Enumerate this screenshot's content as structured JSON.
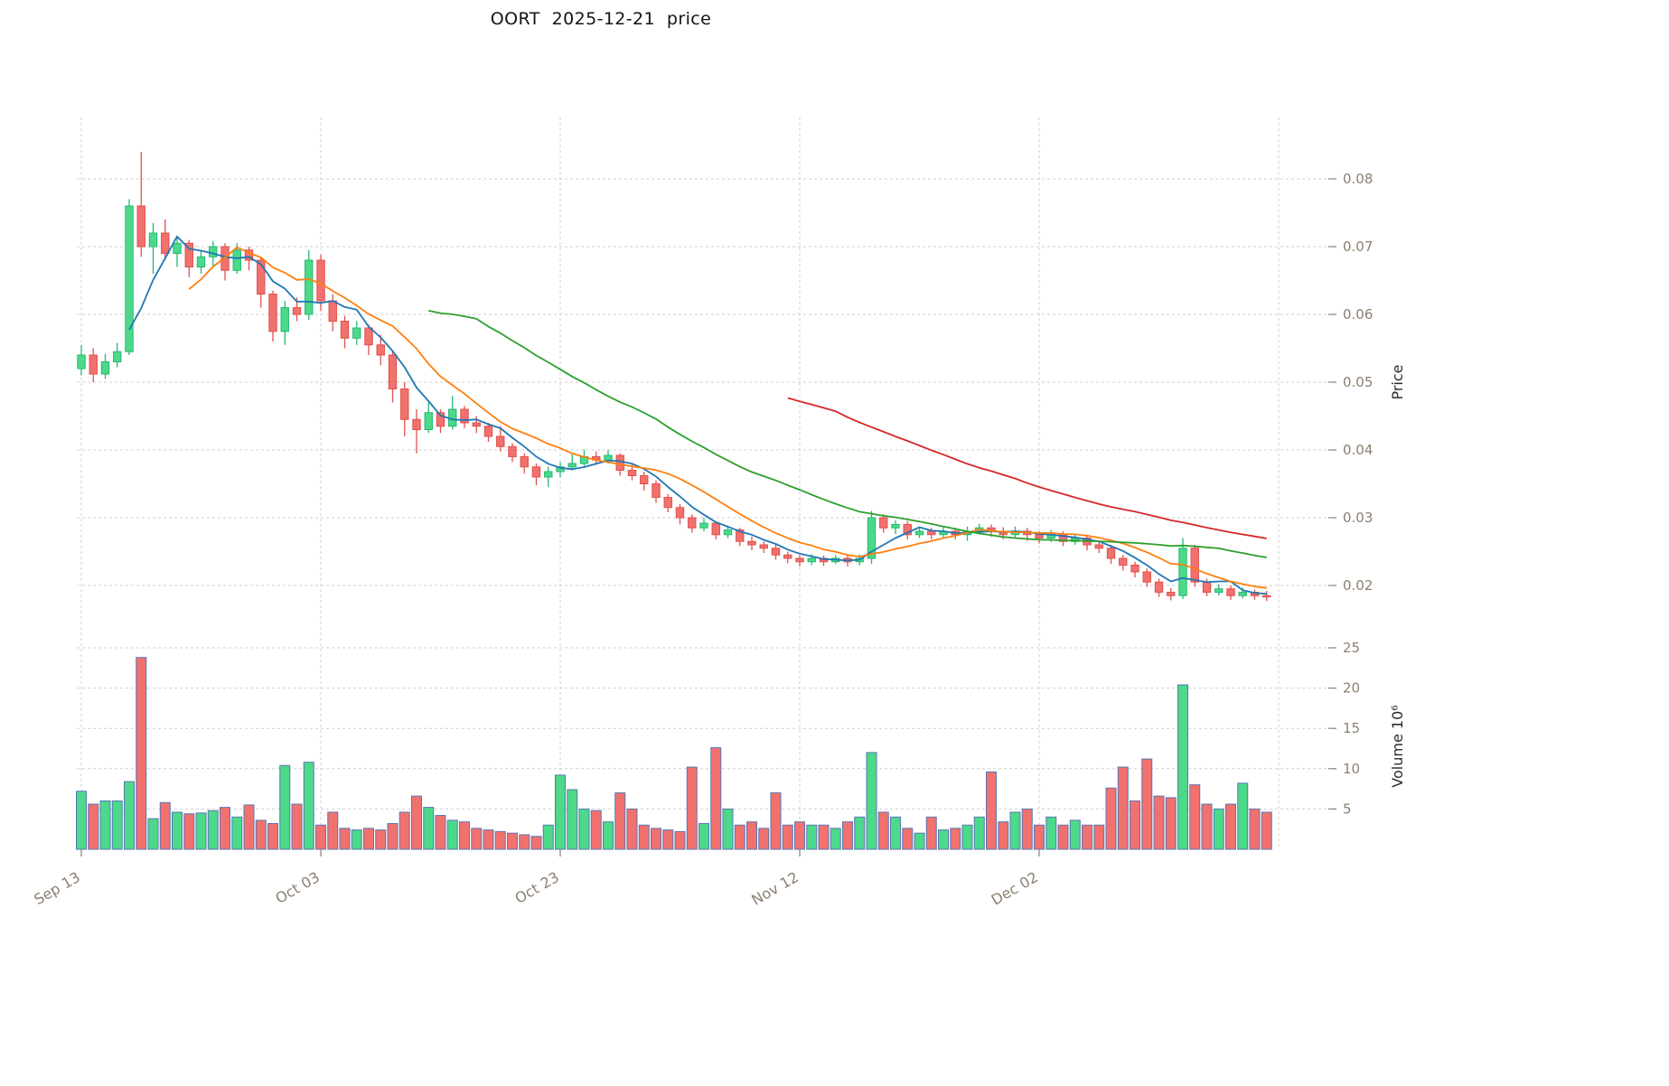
{
  "chart_data": {
    "type": "candlestick",
    "title": "OORT  2025-12-21  price",
    "ylabel": "Price",
    "y2label": "Volume  10⁶",
    "x_axis": {
      "ticks": [
        {
          "label": "Sep 13",
          "index": 0
        },
        {
          "label": "Oct 03",
          "index": 20
        },
        {
          "label": "Oct 23",
          "index": 40
        },
        {
          "label": "Nov 12",
          "index": 60
        },
        {
          "label": "Dec 02",
          "index": 80
        }
      ],
      "extra_gridline_index": 100,
      "n_candles": 100
    },
    "price_axis": {
      "side": "right",
      "ticks": [
        {
          "label": "0.08",
          "value": 0.08
        },
        {
          "label": "0.07",
          "value": 0.07
        },
        {
          "label": "0.06",
          "value": 0.06
        },
        {
          "label": "0.05",
          "value": 0.05
        },
        {
          "label": "0.04",
          "value": 0.04
        },
        {
          "label": "0.03",
          "value": 0.03
        },
        {
          "label": "0.02",
          "value": 0.02
        }
      ],
      "range": [
        0.0165,
        0.089
      ]
    },
    "volume_axis": {
      "side": "right",
      "unit": "10^6",
      "ticks": [
        {
          "label": "25",
          "value": 25
        },
        {
          "label": "20",
          "value": 20
        },
        {
          "label": "15",
          "value": 15
        },
        {
          "label": "10",
          "value": 10
        },
        {
          "label": "5",
          "value": 5
        }
      ],
      "range": [
        0,
        26
      ]
    },
    "moving_averages": [
      {
        "name": "SMA5",
        "window": 5,
        "color": "#1f77b4"
      },
      {
        "name": "SMA10",
        "window": 10,
        "color": "#ff7f0e"
      },
      {
        "name": "SMA30",
        "window": 30,
        "color": "#2ca02c"
      },
      {
        "name": "SMA60",
        "window": 60,
        "color": "#d62728"
      }
    ],
    "colors": {
      "up": "#4cd98a",
      "up_edge": "#26b871",
      "down": "#f0716e",
      "down_edge": "#e2504c",
      "volume_edge": "#5b76b3",
      "grid": "#cfcfcf",
      "tick_text": "#8b8070",
      "axis_title": "#2b2b2b",
      "title": "#141414"
    },
    "candles": {
      "open": [
        0.052,
        0.054,
        0.0512,
        0.053,
        0.0545,
        0.076,
        0.07,
        0.072,
        0.069,
        0.0705,
        0.067,
        0.0685,
        0.07,
        0.0665,
        0.0695,
        0.068,
        0.063,
        0.0575,
        0.061,
        0.06,
        0.068,
        0.062,
        0.059,
        0.0565,
        0.058,
        0.0555,
        0.054,
        0.049,
        0.0445,
        0.043,
        0.0455,
        0.0435,
        0.046,
        0.044,
        0.0435,
        0.042,
        0.0405,
        0.039,
        0.0375,
        0.036,
        0.0368,
        0.0375,
        0.038,
        0.039,
        0.0385,
        0.0392,
        0.037,
        0.0362,
        0.035,
        0.033,
        0.0315,
        0.03,
        0.0285,
        0.0292,
        0.0275,
        0.0282,
        0.0265,
        0.026,
        0.0255,
        0.0245,
        0.024,
        0.0235,
        0.024,
        0.0235,
        0.024,
        0.0235,
        0.024,
        0.03,
        0.0285,
        0.029,
        0.0275,
        0.028,
        0.0275,
        0.028,
        0.0275,
        0.028,
        0.0285,
        0.028,
        0.0275,
        0.028,
        0.0275,
        0.027,
        0.0275,
        0.0265,
        0.027,
        0.026,
        0.0255,
        0.024,
        0.023,
        0.022,
        0.0205,
        0.019,
        0.0185,
        0.0255,
        0.0205,
        0.019,
        0.0195,
        0.0185,
        0.019,
        0.0185
      ],
      "high": [
        0.0555,
        0.055,
        0.0542,
        0.0558,
        0.077,
        0.084,
        0.0735,
        0.074,
        0.0715,
        0.071,
        0.0695,
        0.0708,
        0.0705,
        0.0705,
        0.07,
        0.0685,
        0.0635,
        0.062,
        0.0625,
        0.0695,
        0.0688,
        0.063,
        0.0598,
        0.059,
        0.0585,
        0.057,
        0.0545,
        0.05,
        0.046,
        0.047,
        0.046,
        0.048,
        0.0465,
        0.045,
        0.044,
        0.0435,
        0.041,
        0.0395,
        0.038,
        0.0375,
        0.0382,
        0.0395,
        0.04,
        0.0398,
        0.04,
        0.0395,
        0.0378,
        0.0368,
        0.0355,
        0.0335,
        0.032,
        0.0305,
        0.03,
        0.0295,
        0.0288,
        0.0285,
        0.0272,
        0.0265,
        0.026,
        0.025,
        0.0245,
        0.0246,
        0.0244,
        0.0245,
        0.0244,
        0.0246,
        0.031,
        0.0305,
        0.0296,
        0.0295,
        0.0286,
        0.0285,
        0.0286,
        0.0285,
        0.0287,
        0.0291,
        0.029,
        0.0286,
        0.0287,
        0.0285,
        0.028,
        0.0282,
        0.028,
        0.0276,
        0.0275,
        0.0265,
        0.026,
        0.0245,
        0.0235,
        0.0225,
        0.021,
        0.0196,
        0.027,
        0.026,
        0.021,
        0.0202,
        0.02,
        0.0197,
        0.0194,
        0.0192
      ],
      "low": [
        0.051,
        0.05,
        0.0505,
        0.0522,
        0.054,
        0.0685,
        0.066,
        0.068,
        0.067,
        0.0655,
        0.066,
        0.0672,
        0.065,
        0.066,
        0.0665,
        0.061,
        0.056,
        0.0555,
        0.059,
        0.0592,
        0.0605,
        0.0575,
        0.055,
        0.0555,
        0.054,
        0.0525,
        0.047,
        0.042,
        0.0395,
        0.0425,
        0.0425,
        0.043,
        0.0432,
        0.0425,
        0.0412,
        0.0398,
        0.0382,
        0.0365,
        0.0348,
        0.0345,
        0.036,
        0.037,
        0.0375,
        0.0378,
        0.038,
        0.0362,
        0.0355,
        0.034,
        0.0322,
        0.0308,
        0.029,
        0.0278,
        0.028,
        0.0268,
        0.027,
        0.0258,
        0.0252,
        0.0248,
        0.0238,
        0.0233,
        0.0228,
        0.023,
        0.0229,
        0.0232,
        0.0228,
        0.023,
        0.0232,
        0.0278,
        0.0276,
        0.0268,
        0.027,
        0.0268,
        0.027,
        0.0268,
        0.0266,
        0.0275,
        0.0272,
        0.0268,
        0.027,
        0.0266,
        0.0262,
        0.0264,
        0.0258,
        0.026,
        0.0252,
        0.0248,
        0.0232,
        0.0222,
        0.0212,
        0.0198,
        0.0183,
        0.0178,
        0.018,
        0.0198,
        0.0184,
        0.0185,
        0.0179,
        0.0181,
        0.0179,
        0.0177
      ],
      "close": [
        0.054,
        0.0512,
        0.053,
        0.0545,
        0.076,
        0.07,
        0.072,
        0.069,
        0.0705,
        0.067,
        0.0685,
        0.07,
        0.0665,
        0.0695,
        0.068,
        0.063,
        0.0575,
        0.061,
        0.06,
        0.068,
        0.062,
        0.059,
        0.0565,
        0.058,
        0.0555,
        0.054,
        0.049,
        0.0445,
        0.043,
        0.0455,
        0.0435,
        0.046,
        0.044,
        0.0435,
        0.042,
        0.0405,
        0.039,
        0.0375,
        0.036,
        0.0368,
        0.0375,
        0.038,
        0.039,
        0.0385,
        0.0392,
        0.037,
        0.0362,
        0.035,
        0.033,
        0.0315,
        0.03,
        0.0285,
        0.0292,
        0.0275,
        0.0282,
        0.0265,
        0.026,
        0.0255,
        0.0245,
        0.024,
        0.0235,
        0.024,
        0.0235,
        0.024,
        0.0235,
        0.024,
        0.03,
        0.0285,
        0.029,
        0.0275,
        0.028,
        0.0275,
        0.028,
        0.0275,
        0.028,
        0.0285,
        0.028,
        0.0275,
        0.028,
        0.0275,
        0.027,
        0.0275,
        0.0265,
        0.027,
        0.026,
        0.0255,
        0.024,
        0.023,
        0.022,
        0.0205,
        0.019,
        0.0185,
        0.0255,
        0.0205,
        0.019,
        0.0195,
        0.0185,
        0.019,
        0.0185,
        0.0183
      ]
    },
    "volume_millions": [
      7.2,
      5.6,
      6.0,
      6.0,
      8.4,
      23.8,
      3.8,
      5.8,
      4.6,
      4.4,
      4.5,
      4.8,
      5.2,
      4.0,
      5.5,
      3.6,
      3.2,
      10.4,
      5.6,
      10.8,
      3.0,
      4.6,
      2.6,
      2.4,
      2.6,
      2.4,
      3.2,
      4.6,
      6.6,
      5.2,
      4.2,
      3.6,
      3.4,
      2.6,
      2.4,
      2.2,
      2.0,
      1.8,
      1.6,
      3.0,
      9.2,
      7.4,
      5.0,
      4.8,
      3.4,
      7.0,
      5.0,
      3.0,
      2.6,
      2.4,
      2.2,
      10.2,
      3.2,
      12.6,
      5.0,
      3.0,
      3.4,
      2.6,
      7.0,
      3.0,
      3.4,
      3.0,
      3.0,
      2.6,
      3.4,
      4.0,
      12.0,
      4.6,
      4.0,
      2.6,
      2.0,
      4.0,
      2.4,
      2.6,
      3.0,
      4.0,
      9.6,
      3.4,
      4.6,
      5.0,
      3.0,
      4.0,
      3.0,
      3.6,
      3.0,
      3.0,
      7.6,
      10.2,
      6.0,
      11.2,
      6.6,
      6.4,
      20.4,
      8.0,
      5.6,
      5.0,
      5.6,
      8.2,
      5.0,
      4.6
    ]
  }
}
